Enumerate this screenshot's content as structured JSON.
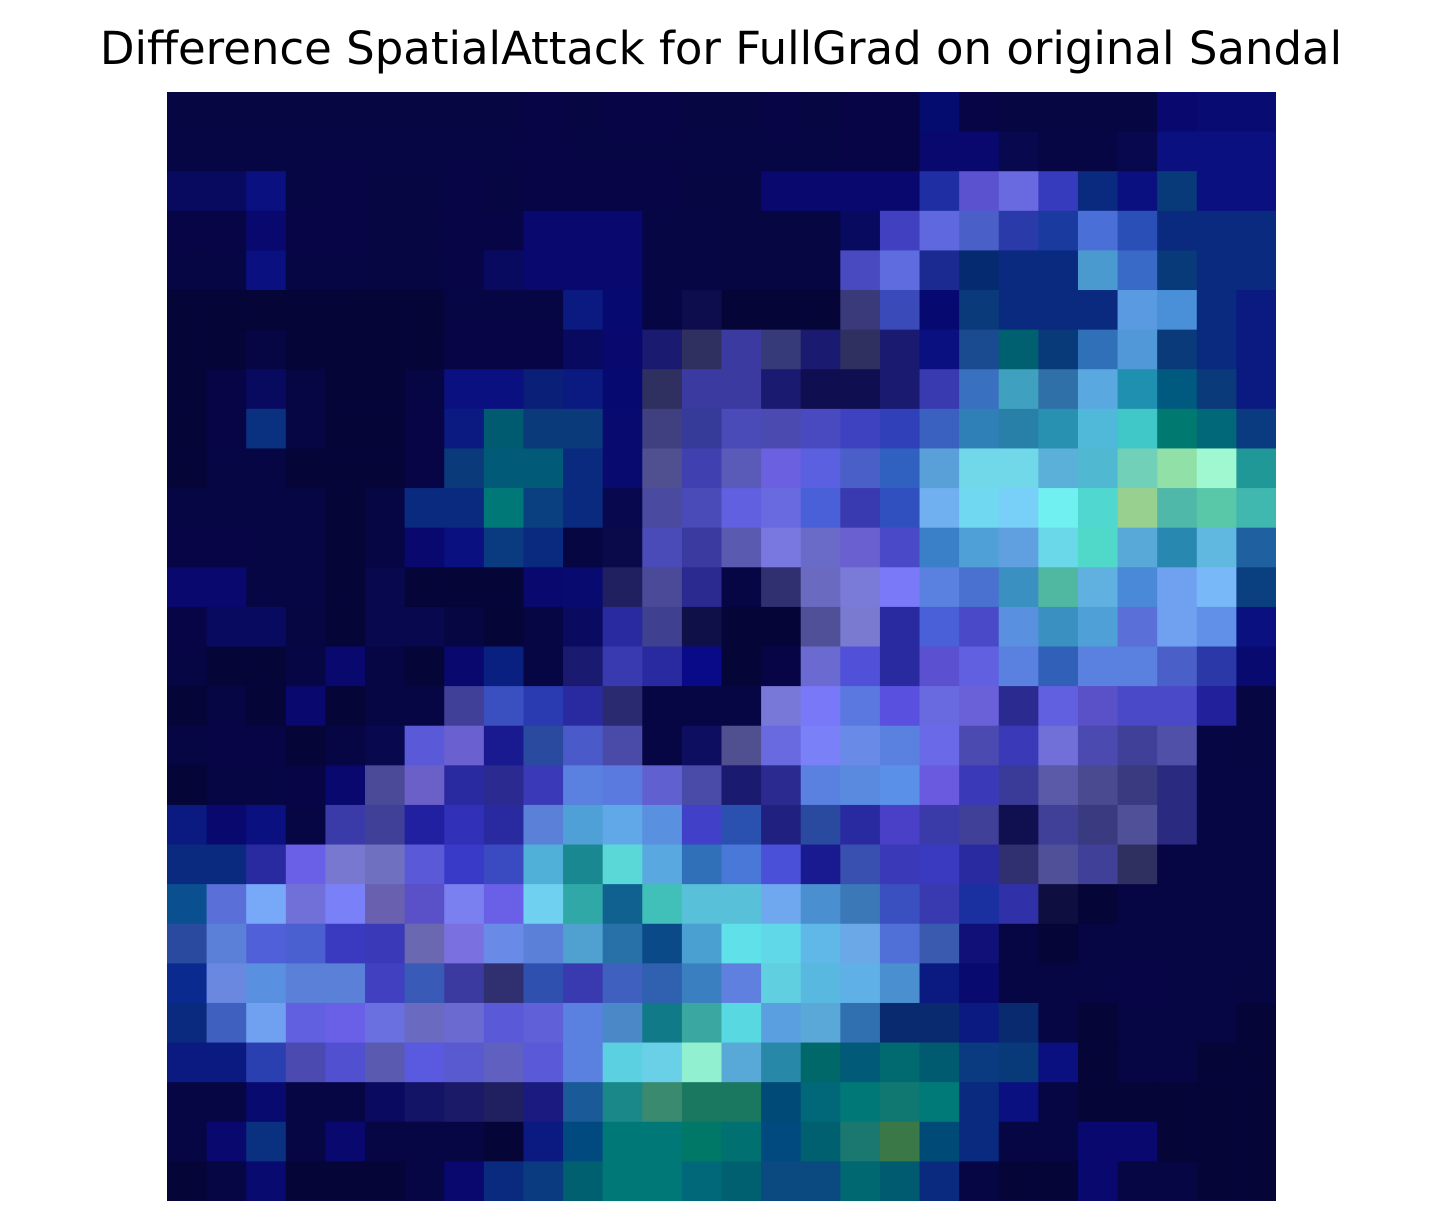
{
  "chart_data": {
    "type": "heatmap",
    "title": "Difference SpatialAttack for FullGrad on original Sandal",
    "xlabel": "",
    "ylabel": "",
    "axes_visible": false,
    "grid": false,
    "colorbar": false,
    "rows": 28,
    "cols": 28,
    "cells": [
      [
        "#060642",
        "#060642",
        "#060642",
        "#060642",
        "#060642",
        "#060642",
        "#060642",
        "#060642",
        "#060642",
        "#070546",
        "#060642",
        "#070546",
        "#070546",
        "#060642",
        "#060642",
        "#070546",
        "#060642",
        "#070546",
        "#070546",
        "#050c70",
        "#070546",
        "#060642",
        "#060642",
        "#060642",
        "#060642",
        "#08086e",
        "#080c72",
        "#080c72"
      ],
      [
        "#060644",
        "#060644",
        "#060644",
        "#060644",
        "#060644",
        "#060644",
        "#060644",
        "#060644",
        "#060644",
        "#070546",
        "#060644",
        "#060644",
        "#060644",
        "#060644",
        "#060644",
        "#060644",
        "#060644",
        "#070546",
        "#070546",
        "#08086e",
        "#08086e",
        "#07084e",
        "#060644",
        "#060644",
        "#07084e",
        "#0a1080",
        "#0a1080",
        "#0a1080"
      ],
      [
        "#080a60",
        "#080a60",
        "#0a1080",
        "#060644",
        "#070546",
        "#060642",
        "#060642",
        "#070546",
        "#060642",
        "#070546",
        "#070546",
        "#070546",
        "#070546",
        "#060642",
        "#060642",
        "#08086e",
        "#08086e",
        "#08086e",
        "#08086e",
        "#1f2ea3",
        "#5a52cf",
        "#6a6ae0",
        "#363abc",
        "#0a2a80",
        "#0a1080",
        "#083a7a",
        "#0a1080",
        "#0a1080"
      ],
      [
        "#070546",
        "#070546",
        "#08086e",
        "#070546",
        "#070546",
        "#060642",
        "#060642",
        "#070546",
        "#070546",
        "#08086e",
        "#08086e",
        "#08086e",
        "#060644",
        "#060644",
        "#060642",
        "#060642",
        "#060642",
        "#080a60",
        "#4040c0",
        "#6068e0",
        "#4a60c8",
        "#2a3aa8",
        "#1a3aa0",
        "#4a70d8",
        "#2a50b8",
        "#0a2a80",
        "#0a2a80",
        "#0a2a80"
      ],
      [
        "#060644",
        "#060644",
        "#0a1080",
        "#060644",
        "#060644",
        "#060642",
        "#060642",
        "#070546",
        "#080a60",
        "#08086e",
        "#08086e",
        "#08086e",
        "#060644",
        "#060644",
        "#060642",
        "#060642",
        "#060642",
        "#4a4ac0",
        "#5e6ce0",
        "#1a2a90",
        "#062a70",
        "#0a2a80",
        "#0a2a80",
        "#4a9ad0",
        "#3a6ac8",
        "#083a7a",
        "#0a2a80",
        "#0a2a80"
      ],
      [
        "#050538",
        "#050538",
        "#050538",
        "#050538",
        "#050538",
        "#050538",
        "#050538",
        "#060644",
        "#060644",
        "#060644",
        "#0a1a80",
        "#060a70",
        "#060644",
        "#0d0d4e",
        "#050538",
        "#050538",
        "#050538",
        "#3a3a7a",
        "#3a4ab8",
        "#060a70",
        "#0a3a7a",
        "#0a2a80",
        "#0a2a80",
        "#0a2a80",
        "#5a9ae0",
        "#4a90d8",
        "#0a2a80",
        "#0a1a80"
      ],
      [
        "#050538",
        "#050538",
        "#060644",
        "#050538",
        "#050538",
        "#050538",
        "#050538",
        "#070546",
        "#070546",
        "#070546",
        "#080a60",
        "#08086e",
        "#1a1a70",
        "#303060",
        "#3a3aa0",
        "#363a78",
        "#1a1a70",
        "#303060",
        "#1a1a70",
        "#0a1080",
        "#1a4a90",
        "#006070",
        "#083a7a",
        "#3070b8",
        "#5098d8",
        "#0a3a7a",
        "#0a2a80",
        "#0a1a80"
      ],
      [
        "#050538",
        "#070546",
        "#080a60",
        "#060644",
        "#050538",
        "#050538",
        "#060644",
        "#0a1080",
        "#0a1080",
        "#0a2078",
        "#0a1a80",
        "#060a70",
        "#303060",
        "#3a3aa0",
        "#3a3aa0",
        "#1a1a70",
        "#0e0e50",
        "#0e0e50",
        "#1a1a70",
        "#3a3ab0",
        "#3a70c0",
        "#40a0c0",
        "#3070a8",
        "#5aa8e0",
        "#2090b0",
        "#005a80",
        "#0a3a7a",
        "#0a1a80"
      ],
      [
        "#050538",
        "#070546",
        "#0a3080",
        "#060644",
        "#050538",
        "#050538",
        "#070546",
        "#0a1a80",
        "#005a70",
        "#0a3a7a",
        "#0a3a7a",
        "#080a70",
        "#404080",
        "#363a98",
        "#4a4ab8",
        "#4a4ab0",
        "#4a4ac0",
        "#3e42c0",
        "#3040b8",
        "#3a60c0",
        "#3080b8",
        "#2880a8",
        "#2890b0",
        "#50b8d8",
        "#40c8c8",
        "#007a70",
        "#006878",
        "#0a3a80"
      ],
      [
        "#050538",
        "#060644",
        "#060644",
        "#050538",
        "#050538",
        "#050538",
        "#070546",
        "#0a3a7a",
        "#005a78",
        "#005a78",
        "#0a2a80",
        "#080a70",
        "#505090",
        "#4040b0",
        "#5a5ab8",
        "#6a60e0",
        "#5a60e0",
        "#4a60c8",
        "#3060c0",
        "#5aa0d8",
        "#70d8e8",
        "#70d8e8",
        "#5ab0d8",
        "#50b8d0",
        "#70d0b8",
        "#90e0a8",
        "#a0f8d0",
        "#209898"
      ],
      [
        "#060644",
        "#060644",
        "#060644",
        "#060644",
        "#050538",
        "#060644",
        "#0a2a80",
        "#0a2a80",
        "#007878",
        "#0a4080",
        "#0a2a80",
        "#07084e",
        "#4a4aa0",
        "#4a4ab8",
        "#6060e0",
        "#6a6ae0",
        "#4a60d8",
        "#3a3ab0",
        "#3050c0",
        "#70b0f0",
        "#70d8f0",
        "#78d0f8",
        "#70f0f0",
        "#50d8d0",
        "#98d090",
        "#50b8a8",
        "#58c8a8",
        "#40b8b0"
      ],
      [
        "#070546",
        "#070546",
        "#060644",
        "#060644",
        "#050538",
        "#060644",
        "#08086e",
        "#0a1080",
        "#0a3a80",
        "#0a2a80",
        "#060642",
        "#0a0a4a",
        "#4a4ab8",
        "#3a3aa0",
        "#5a5ab0",
        "#7878e0",
        "#6a6ac8",
        "#6a60d0",
        "#4a4ac8",
        "#3a80c8",
        "#50a0d8",
        "#60a0e0",
        "#6ad8e8",
        "#50d8c8",
        "#58a8d8",
        "#2888b0",
        "#60b8e0",
        "#1e60a0"
      ],
      [
        "#08086e",
        "#08086e",
        "#060644",
        "#060644",
        "#050538",
        "#07084e",
        "#050538",
        "#050538",
        "#050538",
        "#08086e",
        "#080a70",
        "#202060",
        "#4a4a98",
        "#2a2a90",
        "#060644",
        "#303070",
        "#6a6ac0",
        "#7a7ad8",
        "#7a7af8",
        "#5a80e0",
        "#4a70d0",
        "#3a90c0",
        "#50b8a0",
        "#60b0e0",
        "#4a88d8",
        "#70a0f0",
        "#78b8f8",
        "#0a4080"
      ],
      [
        "#070546",
        "#080a60",
        "#080a60",
        "#060642",
        "#050538",
        "#07084e",
        "#07084e",
        "#060642",
        "#050538",
        "#060644",
        "#0a0a60",
        "#2a2aa0",
        "#404090",
        "#101048",
        "#050538",
        "#050538",
        "#505098",
        "#7a7ad0",
        "#2a2aa0",
        "#4a60d8",
        "#4a4ac8",
        "#5a90e0",
        "#3a90c0",
        "#50a0d8",
        "#5a70d8",
        "#70a0f0",
        "#6090e8",
        "#0a1080"
      ],
      [
        "#060644",
        "#050538",
        "#050538",
        "#060644",
        "#08086e",
        "#060644",
        "#050538",
        "#08086e",
        "#0a2080",
        "#060644",
        "#1a1a70",
        "#3a3ab0",
        "#2a2aa0",
        "#080a88",
        "#050538",
        "#070546",
        "#6a6ad0",
        "#5050d8",
        "#2a2aa0",
        "#5a50d0",
        "#6060e0",
        "#5a80e0",
        "#3060b8",
        "#5a80e0",
        "#5a80e0",
        "#4a60c8",
        "#2a38a8",
        "#080a70"
      ],
      [
        "#050538",
        "#060644",
        "#050538",
        "#08086e",
        "#050538",
        "#060644",
        "#060644",
        "#404098",
        "#3a50c0",
        "#2a3ab0",
        "#2a2aa0",
        "#2a2a70",
        "#060644",
        "#060644",
        "#060644",
        "#7878d8",
        "#7878f8",
        "#5a78e0",
        "#5a50e0",
        "#6a6ae0",
        "#6a60d8",
        "#2a2a90",
        "#6060e0",
        "#5a50c8",
        "#4a4ac8",
        "#4a4ac8",
        "#22209a",
        "#060642"
      ],
      [
        "#060644",
        "#070546",
        "#070546",
        "#050538",
        "#060644",
        "#07084e",
        "#5a5ad8",
        "#6a60d0",
        "#1a1a90",
        "#2a4aa0",
        "#4a5ac8",
        "#4a4aa8",
        "#060644",
        "#0e0e60",
        "#505090",
        "#6a6ae0",
        "#7a80f8",
        "#6a8ae8",
        "#5a80e0",
        "#6a6ae8",
        "#4a4ab0",
        "#3a3ab8",
        "#7070d8",
        "#4a4ab0",
        "#404098",
        "#5050a8",
        "#060644",
        "#060642"
      ],
      [
        "#050538",
        "#060644",
        "#060644",
        "#070546",
        "#08086e",
        "#4a4a98",
        "#6a60c8",
        "#2a2aa0",
        "#2a2a90",
        "#3a3ab8",
        "#5a80e0",
        "#5a7ae0",
        "#6060d0",
        "#4a4aa8",
        "#1a1a70",
        "#2a2a90",
        "#5a80e0",
        "#5a8ae0",
        "#5a90e8",
        "#6a5ae0",
        "#3a3ab8",
        "#3a3a98",
        "#5a5aa8",
        "#4a4a90",
        "#3a3a80",
        "#2a2a80",
        "#060644",
        "#060644"
      ],
      [
        "#0a1a80",
        "#08086e",
        "#0a1080",
        "#060644",
        "#3a3aa8",
        "#404098",
        "#2020a0",
        "#3030b8",
        "#2a2aa0",
        "#5a80d8",
        "#50a0d8",
        "#60a8e8",
        "#5a90e0",
        "#4040c8",
        "#2a50b0",
        "#202080",
        "#2a4aa0",
        "#2a2aa0",
        "#4a40c8",
        "#3a3aa8",
        "#404098",
        "#101050",
        "#404098",
        "#3a3a80",
        "#505098",
        "#2a2a80",
        "#060644",
        "#060644"
      ],
      [
        "#0a2a80",
        "#0a2a80",
        "#2a2aa0",
        "#6a60e8",
        "#7878d0",
        "#7070c0",
        "#5a5ad8",
        "#3a3ac8",
        "#3a4ac0",
        "#50b0d8",
        "#1a8890",
        "#5ad8d8",
        "#5aa8e0",
        "#3070b8",
        "#4a78d8",
        "#4a50d8",
        "#1a1a90",
        "#3a50b0",
        "#3a3ab8",
        "#3a3ac0",
        "#2a2aa0",
        "#303070",
        "#505098",
        "#404098",
        "#303060",
        "#060644",
        "#060644",
        "#060644"
      ],
      [
        "#0a5090",
        "#5a70d8",
        "#78a8f8",
        "#7070d8",
        "#7a80f8",
        "#6a60b0",
        "#5a50c8",
        "#7a80f0",
        "#6a60e8",
        "#70d0f0",
        "#30a8a8",
        "#106090",
        "#40c0b8",
        "#58c0d8",
        "#58c0d8",
        "#70a8f0",
        "#4a90d0",
        "#3a78b8",
        "#3a50c0",
        "#3a3ab0",
        "#1a30a0",
        "#3030a8",
        "#0e0e40",
        "#050538",
        "#060644",
        "#060644",
        "#060644",
        "#060644"
      ],
      [
        "#2a4aa0",
        "#5a80d8",
        "#5060d8",
        "#4a60d0",
        "#3a3ac0",
        "#3a3ab8",
        "#6a68b0",
        "#7a70e0",
        "#6a8ae8",
        "#5a80d8",
        "#50a0d0",
        "#2870a8",
        "#0a4a88",
        "#4aa0d0",
        "#60e0e8",
        "#60d8e8",
        "#60b8e8",
        "#6aa8e8",
        "#5070d8",
        "#3a5ab0",
        "#101078",
        "#060644",
        "#050538",
        "#060644",
        "#060644",
        "#060644",
        "#060644",
        "#060644"
      ],
      [
        "#0a2a90",
        "#6a88e0",
        "#5a90e0",
        "#5a80d8",
        "#5a80d8",
        "#4040c0",
        "#3a5ab8",
        "#3a3aa0",
        "#303070",
        "#3050b0",
        "#3a3ab0",
        "#4060c0",
        "#3060b0",
        "#3a80c0",
        "#6080e0",
        "#60d0e0",
        "#58b8e0",
        "#60b0e8",
        "#4a90d0",
        "#0a1a80",
        "#080a70",
        "#060644",
        "#060644",
        "#060644",
        "#070546",
        "#060644",
        "#060644",
        "#060642"
      ],
      [
        "#0a2a80",
        "#4060c0",
        "#70a0f0",
        "#6060e0",
        "#6a60e8",
        "#6a70e0",
        "#6a6ac0",
        "#6a6ad0",
        "#5a5ad8",
        "#6060d8",
        "#5a80e0",
        "#4a88c8",
        "#107a88",
        "#3aa8a0",
        "#58d8e0",
        "#5aa0e0",
        "#5aa8d8",
        "#3070b0",
        "#0a2a70",
        "#0a2a70",
        "#0a1a80",
        "#0a2a70",
        "#060644",
        "#050538",
        "#060644",
        "#060644",
        "#060644",
        "#050538"
      ],
      [
        "#0a1a80",
        "#0a1a80",
        "#2a40b0",
        "#4a4ab0",
        "#5050d0",
        "#5a5ab0",
        "#5a5ae0",
        "#5a5ad0",
        "#6060c0",
        "#5a5ad8",
        "#5a80e0",
        "#5ad0e0",
        "#6ad0e8",
        "#90f0d0",
        "#58a8d8",
        "#2888a8",
        "#006868",
        "#005a78",
        "#006a70",
        "#005a70",
        "#0a3a80",
        "#083a7a",
        "#0a1080",
        "#050538",
        "#060644",
        "#060644",
        "#050538",
        "#050538"
      ],
      [
        "#060644",
        "#060644",
        "#080a70",
        "#060644",
        "#060644",
        "#0a0a60",
        "#141466",
        "#1a1a68",
        "#202060",
        "#1a1a80",
        "#1a5a98",
        "#1a8888",
        "#3a8a70",
        "#1a7860",
        "#1a7860",
        "#004a78",
        "#006878",
        "#007878",
        "#107870",
        "#007a78",
        "#0a2a80",
        "#0a1080",
        "#060644",
        "#050538",
        "#050538",
        "#050538",
        "#050538",
        "#050538"
      ],
      [
        "#060644",
        "#08086e",
        "#0a3080",
        "#060644",
        "#08086e",
        "#060644",
        "#060644",
        "#060644",
        "#050538",
        "#0a1a80",
        "#004a80",
        "#007878",
        "#007878",
        "#007868",
        "#007070",
        "#004a80",
        "#006070",
        "#1a7870",
        "#3a7848",
        "#004a78",
        "#0a2a80",
        "#060644",
        "#060644",
        "#08086e",
        "#08086e",
        "#050538",
        "#050538",
        "#050538"
      ],
      [
        "#050538",
        "#060644",
        "#080a70",
        "#050538",
        "#050538",
        "#050538",
        "#060644",
        "#08086e",
        "#0a2a80",
        "#0a3a80",
        "#006070",
        "#007878",
        "#007878",
        "#006878",
        "#006070",
        "#0a4a80",
        "#0a4a80",
        "#006870",
        "#005a70",
        "#0a2a80",
        "#060644",
        "#050538",
        "#050538",
        "#08086e",
        "#060644",
        "#060644",
        "#050538",
        "#050538"
      ]
    ]
  }
}
